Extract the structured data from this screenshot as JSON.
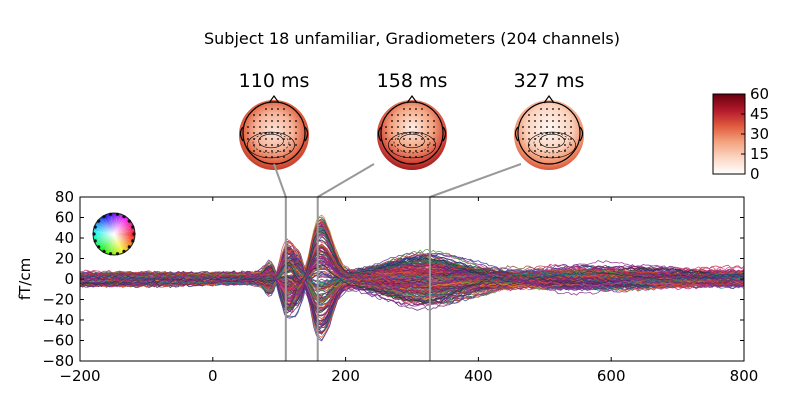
{
  "chart_data": {
    "type": "line",
    "title": "Subject 18 unfamiliar, Gradiometers (204 channels)",
    "xlabel": "",
    "ylabel": "fT/cm",
    "xlim": [
      -200,
      800
    ],
    "ylim": [
      -80,
      80
    ],
    "xticks": [
      "−200",
      "0",
      "200",
      "400",
      "600",
      "800"
    ],
    "yticks": [
      "80",
      "60",
      "40",
      "20",
      "0",
      "−20",
      "−40",
      "−60",
      "−80"
    ],
    "grid": false,
    "series_count": 204,
    "series_description": "butterfly plot of evoked gradiometer responses, one line per channel, colored by sensor position",
    "topomaps": [
      {
        "time_ms": 110,
        "label": "110 ms"
      },
      {
        "time_ms": 158,
        "label": "158 ms"
      },
      {
        "time_ms": 327,
        "label": "327 ms"
      }
    ],
    "colorbar": {
      "range": [
        0,
        60
      ],
      "ticks": [
        "60",
        "45",
        "30",
        "15",
        "0"
      ],
      "colormap": [
        "#ffffff",
        "#fcd7c4",
        "#f4a37f",
        "#e05a3e",
        "#b2182b",
        "#67000d"
      ]
    },
    "timeline_color": "#999999"
  }
}
